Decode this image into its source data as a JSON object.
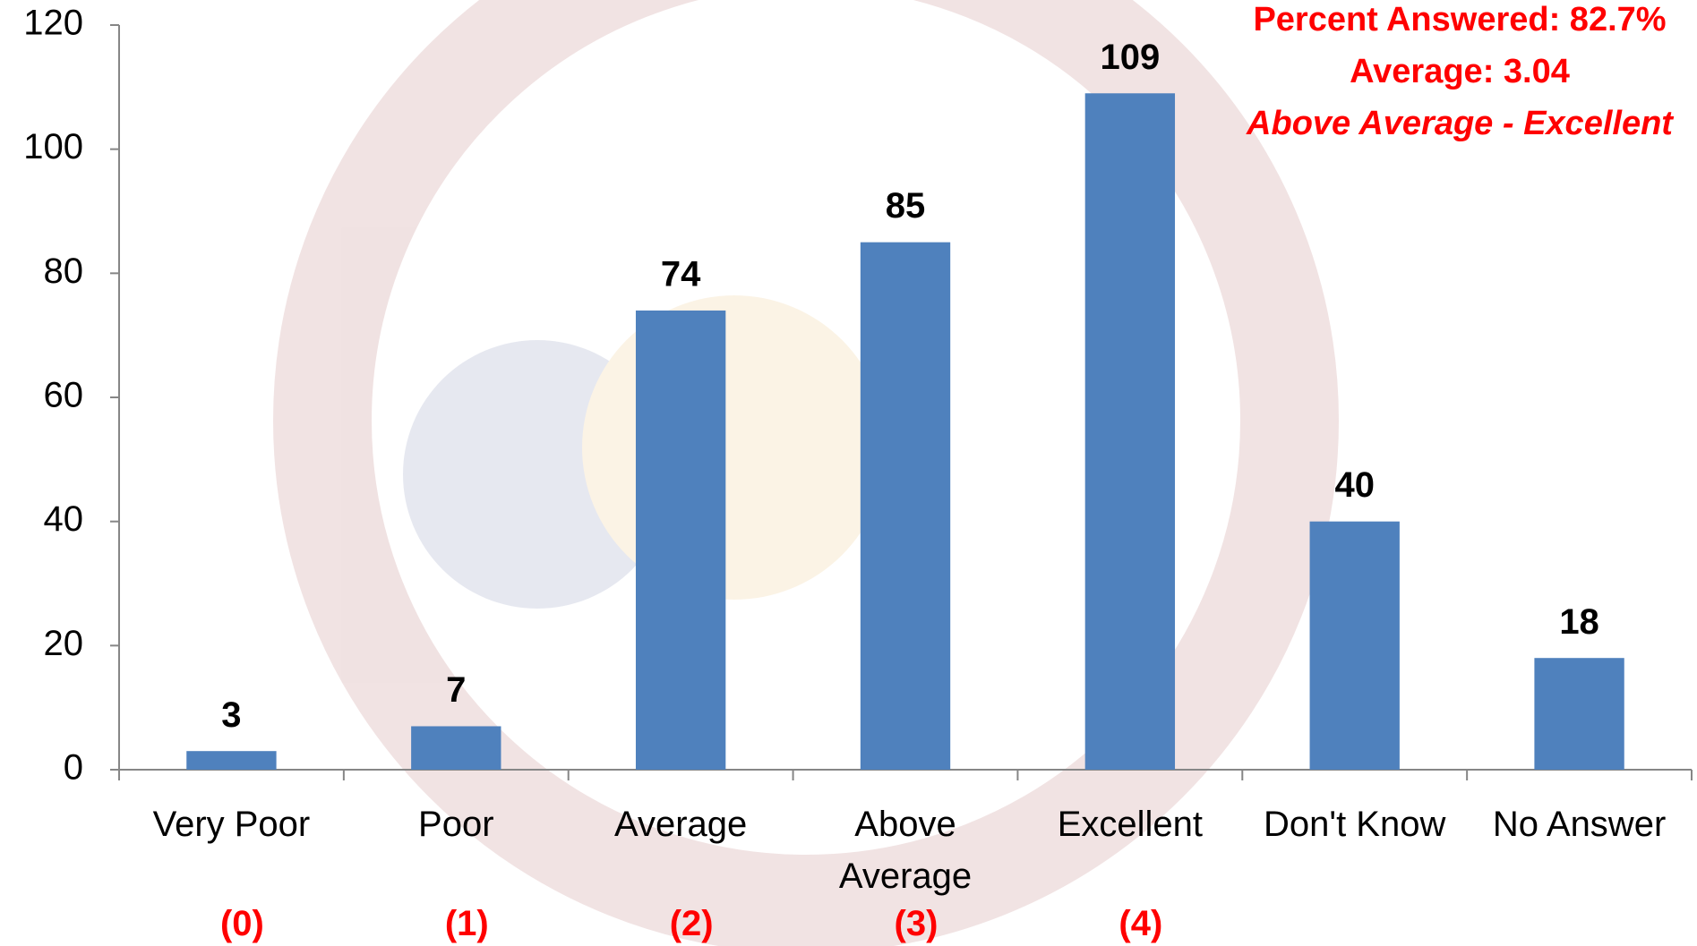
{
  "chart_data": {
    "type": "bar",
    "categories": [
      "Very Poor",
      "Poor",
      "Average",
      "Above Average",
      "Excellent",
      "Don't Know",
      "No Answer"
    ],
    "values": [
      3,
      7,
      74,
      85,
      109,
      40,
      18
    ],
    "score_labels": [
      "(0)",
      "(1)",
      "(2)",
      "(3)",
      "(4)",
      null,
      null
    ],
    "color": "#4f81bd",
    "ylim": [
      0,
      120
    ],
    "yticks": [
      0,
      20,
      40,
      60,
      80,
      100,
      120
    ],
    "grid": false,
    "annotations": [
      "Percent Answered: 82.7%",
      "Average: 3.04",
      "Above Average - Excellent"
    ]
  }
}
